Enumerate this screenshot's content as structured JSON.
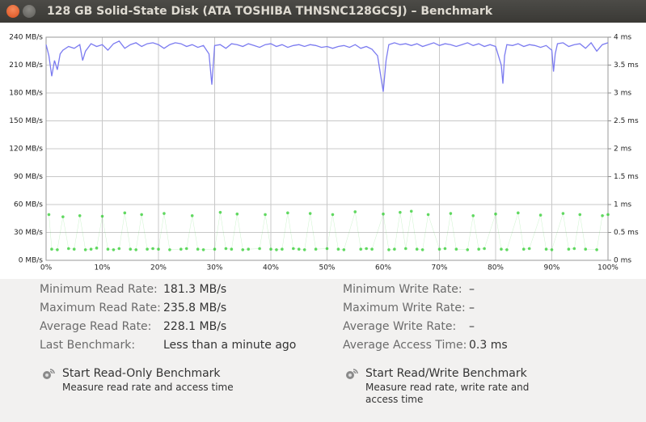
{
  "window": {
    "title": "128 GB Solid-State Disk (ATA TOSHIBA THNSNC128GCSJ) – Benchmark"
  },
  "chart_data": {
    "type": "line",
    "xlim": [
      0,
      100
    ],
    "xticks": [
      {
        "value": 0,
        "label": "0%"
      },
      {
        "value": 10,
        "label": "10%"
      },
      {
        "value": 20,
        "label": "20%"
      },
      {
        "value": 30,
        "label": "30%"
      },
      {
        "value": 40,
        "label": "40%"
      },
      {
        "value": 50,
        "label": "50%"
      },
      {
        "value": 60,
        "label": "60%"
      },
      {
        "value": 70,
        "label": "70%"
      },
      {
        "value": 80,
        "label": "80%"
      },
      {
        "value": 90,
        "label": "90%"
      },
      {
        "value": 100,
        "label": "100%"
      }
    ],
    "ylim": [
      0,
      240
    ],
    "yticks": [
      {
        "value": 0,
        "label": "0 MB/s"
      },
      {
        "value": 30,
        "label": "30 MB/s"
      },
      {
        "value": 60,
        "label": "60 MB/s"
      },
      {
        "value": 90,
        "label": "90 MB/s"
      },
      {
        "value": 120,
        "label": "120 MB/s"
      },
      {
        "value": 150,
        "label": "150 MB/s"
      },
      {
        "value": 180,
        "label": "180 MB/s"
      },
      {
        "value": 210,
        "label": "210 MB/s"
      },
      {
        "value": 240,
        "label": "240 MB/s"
      }
    ],
    "y2lim": [
      0,
      4
    ],
    "y2ticks": [
      {
        "value": 0,
        "label": "0 ms"
      },
      {
        "value": 0.5,
        "label": "0.5 ms"
      },
      {
        "value": 1,
        "label": "1 ms"
      },
      {
        "value": 1.5,
        "label": "1.5 ms"
      },
      {
        "value": 2,
        "label": "2 ms"
      },
      {
        "value": 2.5,
        "label": "2.5 ms"
      },
      {
        "value": 3,
        "label": "3 ms"
      },
      {
        "value": 3.5,
        "label": "3.5 ms"
      },
      {
        "value": 4,
        "label": "4 ms"
      }
    ],
    "grid": true,
    "series": [
      {
        "type": "line",
        "color": "#7b7bf0",
        "x": [
          0,
          0.5,
          1,
          1.5,
          2,
          2.5,
          3,
          4,
          5,
          6,
          6.5,
          7,
          8,
          9,
          10,
          11,
          12,
          13,
          14,
          15,
          16,
          17,
          18,
          19,
          20,
          21,
          22,
          23,
          24,
          25,
          26,
          27,
          28,
          29,
          29.5,
          30,
          31,
          32,
          33,
          34,
          35,
          36,
          37,
          38,
          39,
          40,
          41,
          42,
          43,
          44,
          45,
          46,
          47,
          48,
          49,
          50,
          51,
          52,
          53,
          54,
          55,
          56,
          57,
          58,
          59,
          60,
          60.5,
          61,
          62,
          63,
          64,
          65,
          66,
          67,
          68,
          69,
          70,
          71,
          72,
          73,
          74,
          75,
          76,
          77,
          78,
          79,
          80,
          81,
          81.3,
          81.6,
          82,
          83,
          84,
          85,
          86,
          87,
          88,
          89,
          90,
          90.3,
          90.6,
          91,
          92,
          93,
          94,
          95,
          96,
          97,
          98,
          99,
          100
        ],
        "values": [
          232,
          220,
          198,
          215,
          205,
          222,
          226,
          230,
          228,
          232,
          215,
          225,
          233,
          230,
          232,
          226,
          233,
          235.8,
          228,
          232,
          234,
          230,
          233,
          234,
          232,
          228,
          232,
          234,
          233,
          230,
          232,
          229,
          231,
          222,
          189,
          231,
          232,
          228,
          233,
          232,
          230,
          233,
          231,
          229,
          232,
          233,
          230,
          232,
          229,
          231,
          232,
          230,
          232,
          231,
          229,
          230,
          228,
          230,
          231,
          229,
          232,
          228,
          230,
          227,
          220,
          181.3,
          215,
          232,
          234,
          232,
          233,
          231,
          233,
          230,
          232,
          234,
          231,
          233,
          232,
          230,
          232,
          234,
          231,
          233,
          230,
          232,
          230,
          210,
          190,
          220,
          232,
          231,
          233,
          230,
          232,
          231,
          229,
          231,
          226,
          203,
          222,
          233,
          234,
          230,
          232,
          233,
          228,
          234,
          225,
          232,
          234
        ]
      },
      {
        "type": "scatter",
        "color": "#3ccf3c",
        "axis": "y2",
        "x": [
          0.5,
          1,
          2,
          3,
          4,
          5,
          6,
          7,
          8,
          9,
          10,
          11,
          12,
          13,
          14,
          15,
          16,
          17,
          18,
          19,
          20,
          21,
          22,
          24,
          25,
          26,
          27,
          28,
          30,
          31,
          32,
          33,
          34,
          35,
          36,
          38,
          39,
          40,
          41,
          42,
          43,
          44,
          45,
          46,
          47,
          48,
          50,
          51,
          52,
          53,
          55,
          56,
          57,
          58,
          60,
          61,
          62,
          63,
          64,
          65,
          66,
          67,
          68,
          70,
          71,
          72,
          73,
          75,
          76,
          77,
          78,
          80,
          81,
          82,
          84,
          85,
          86,
          88,
          89,
          90,
          92,
          93,
          94,
          95,
          96,
          98,
          99,
          100
        ],
        "values": [
          0.82,
          0.2,
          0.19,
          0.78,
          0.21,
          0.2,
          0.8,
          0.19,
          0.2,
          0.22,
          0.79,
          0.2,
          0.19,
          0.21,
          0.85,
          0.2,
          0.19,
          0.82,
          0.2,
          0.21,
          0.2,
          0.84,
          0.19,
          0.2,
          0.21,
          0.8,
          0.2,
          0.19,
          0.2,
          0.86,
          0.21,
          0.2,
          0.83,
          0.19,
          0.2,
          0.21,
          0.82,
          0.2,
          0.19,
          0.2,
          0.85,
          0.21,
          0.2,
          0.19,
          0.84,
          0.2,
          0.21,
          0.82,
          0.2,
          0.19,
          0.87,
          0.2,
          0.21,
          0.2,
          0.83,
          0.19,
          0.2,
          0.86,
          0.21,
          0.88,
          0.2,
          0.19,
          0.82,
          0.2,
          0.21,
          0.84,
          0.2,
          0.19,
          0.8,
          0.2,
          0.21,
          0.83,
          0.2,
          0.19,
          0.85,
          0.2,
          0.21,
          0.81,
          0.2,
          0.19,
          0.84,
          0.2,
          0.21,
          0.82,
          0.2,
          0.19,
          0.8,
          0.82
        ]
      }
    ]
  },
  "stats": {
    "left": [
      {
        "label": "Minimum Read Rate:",
        "value": "181.3 MB/s"
      },
      {
        "label": "Maximum Read Rate:",
        "value": "235.8 MB/s"
      },
      {
        "label": "Average Read Rate:",
        "value": "228.1 MB/s"
      },
      {
        "label": "Last Benchmark:",
        "value": "Less than a minute ago"
      }
    ],
    "right": [
      {
        "label": "Minimum Write Rate:",
        "value": "–"
      },
      {
        "label": "Maximum Write Rate:",
        "value": "–"
      },
      {
        "label": "Average Write Rate:",
        "value": "–"
      },
      {
        "label": "Average Access Time:",
        "value": "0.3 ms"
      }
    ]
  },
  "actions": [
    {
      "title": "Start Read-Only Benchmark",
      "subtitle": "Measure read rate and access time"
    },
    {
      "title": "Start Read/Write Benchmark",
      "subtitle": "Measure read rate, write rate and access time"
    }
  ]
}
